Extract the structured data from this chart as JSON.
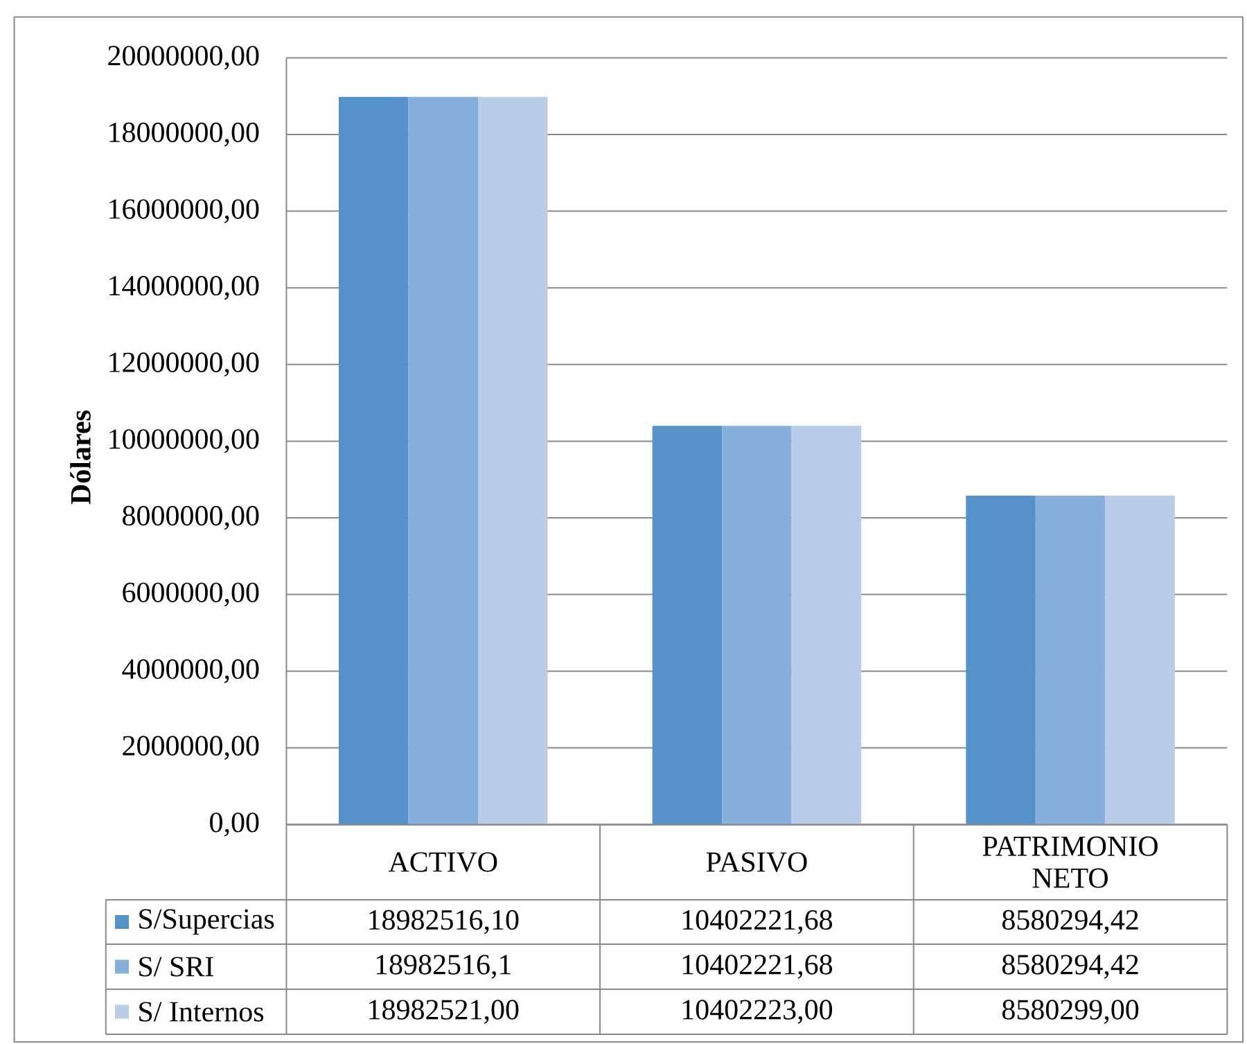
{
  "chart_data": {
    "type": "bar",
    "ylabel": "Dólares",
    "categories": [
      "ACTIVO",
      "PASIVO",
      "PATRIMONIO NETO"
    ],
    "series": [
      {
        "name": "S/Supercias",
        "color": "#5692c8",
        "values": [
          18982516.1,
          10402221.68,
          8580294.42
        ],
        "value_labels": [
          "18982516,10",
          "10402221,68",
          "8580294,42"
        ]
      },
      {
        "name": "S/ SRI",
        "color": "#86afdc",
        "values": [
          18982516.1,
          10402221.68,
          8580294.42
        ],
        "value_labels": [
          "18982516,1",
          "10402221,68",
          "8580294,42"
        ]
      },
      {
        "name": "S/ Internos",
        "color": "#b9cde8",
        "values": [
          18982521.0,
          10402223.0,
          8580299.0
        ],
        "value_labels": [
          "18982521,00",
          "10402223,00",
          "8580299,00"
        ]
      }
    ],
    "ylim": [
      0,
      20000000
    ],
    "yticks": [
      {
        "value": 0,
        "label": "0,00"
      },
      {
        "value": 2000000,
        "label": "2000000,00"
      },
      {
        "value": 4000000,
        "label": "4000000,00"
      },
      {
        "value": 6000000,
        "label": "6000000,00"
      },
      {
        "value": 8000000,
        "label": "8000000,00"
      },
      {
        "value": 10000000,
        "label": "10000000,00"
      },
      {
        "value": 12000000,
        "label": "12000000,00"
      },
      {
        "value": 14000000,
        "label": "14000000,00"
      },
      {
        "value": 16000000,
        "label": "16000000,00"
      },
      {
        "value": 18000000,
        "label": "18000000,00"
      },
      {
        "value": 20000000,
        "label": "20000000,00"
      }
    ],
    "grid": "y",
    "legend": "bottom left"
  }
}
